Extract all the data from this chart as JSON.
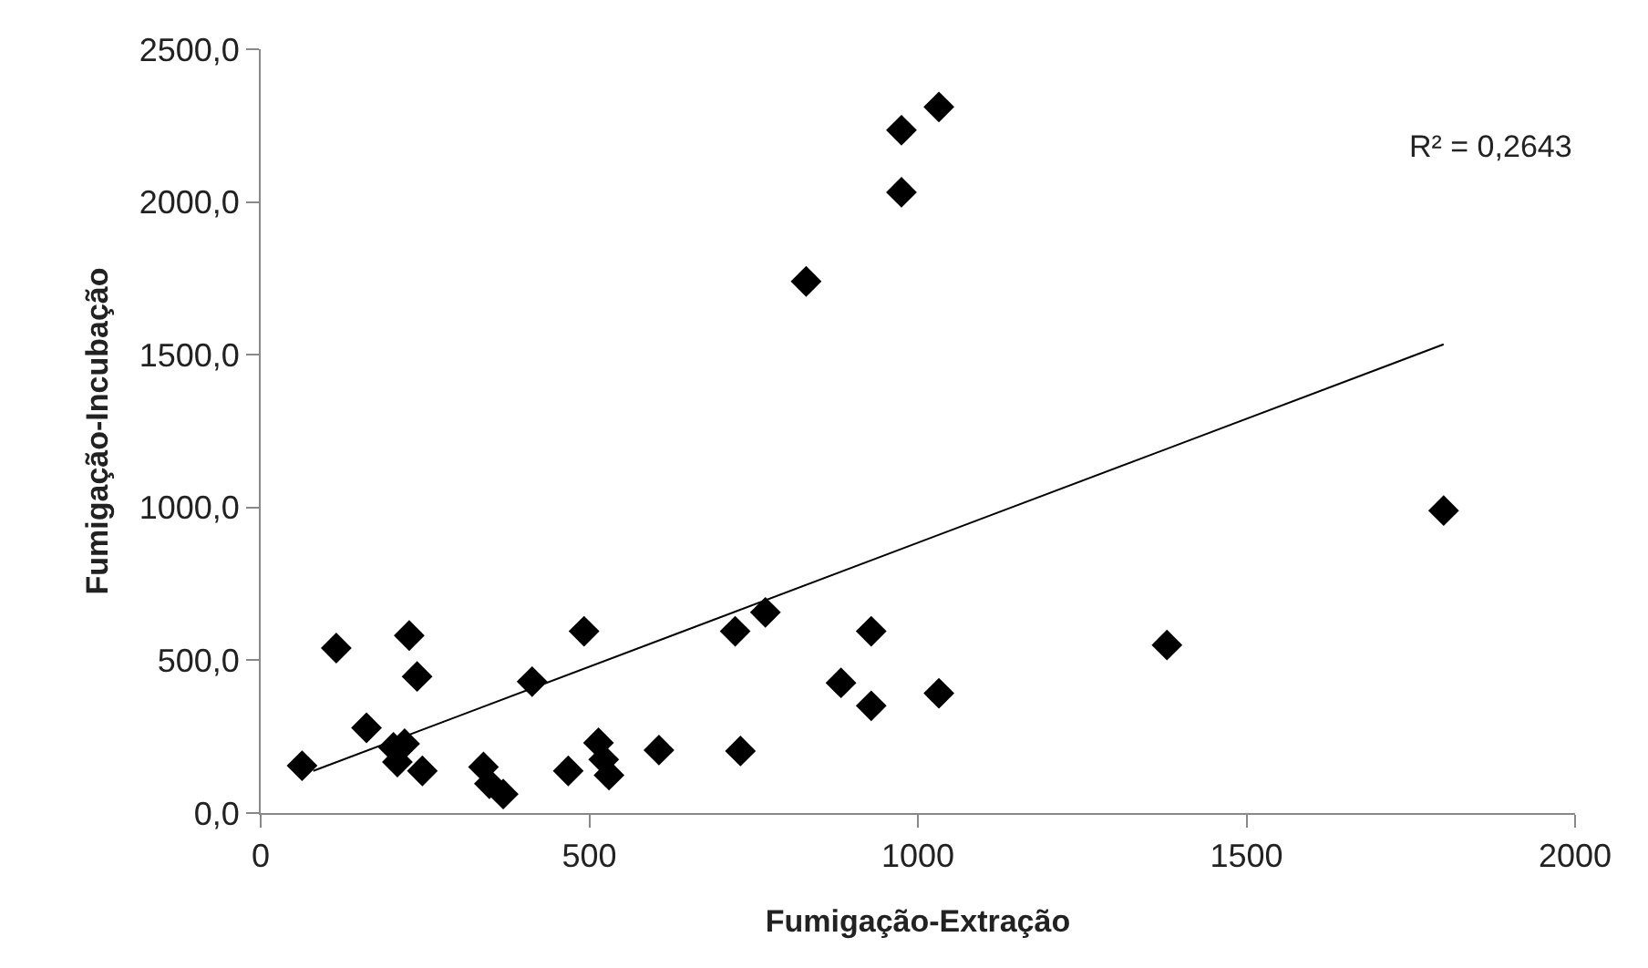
{
  "chart_data": {
    "type": "scatter",
    "xlabel": "Fumigação-Extração",
    "ylabel": "Fumigação-Incubação",
    "annotations": [
      "R² = 0,2643"
    ],
    "marker": "diamond",
    "grid": false,
    "xlim": [
      0,
      2000
    ],
    "xticks": [
      0,
      500,
      1000,
      1500,
      2000
    ],
    "ylim": [
      0,
      2500
    ],
    "yticks": [
      {
        "value": 0,
        "label": "0,0"
      },
      {
        "value": 500,
        "label": "500,0"
      },
      {
        "value": 1000,
        "label": "1000,0"
      },
      {
        "value": 1500,
        "label": "1500,0"
      },
      {
        "value": 2000,
        "label": "2000,0"
      },
      {
        "value": 2500,
        "label": "2500,0"
      }
    ],
    "series": [
      {
        "color": "#000000",
        "x": [
          63,
          115,
          161,
          202,
          219,
          208,
          226,
          238,
          246,
          339,
          348,
          369,
          413,
          468,
          492,
          514,
          522,
          530,
          606,
          722,
          730,
          768,
          830,
          883,
          929,
          929,
          975,
          975,
          1032,
          1032,
          1379,
          1800
        ],
        "values": [
          155,
          540,
          279,
          215,
          227,
          167,
          581,
          447,
          138,
          151,
          96,
          62,
          430,
          138,
          595,
          230,
          175,
          124,
          206,
          595,
          203,
          657,
          1740,
          426,
          595,
          351,
          2235,
          2032,
          2311,
          392,
          550,
          990
        ]
      },
      {
        "type": "line",
        "marker": "none",
        "color": "#000000",
        "x": [
          80,
          1800
        ],
        "values": [
          138,
          1534
        ]
      }
    ]
  }
}
